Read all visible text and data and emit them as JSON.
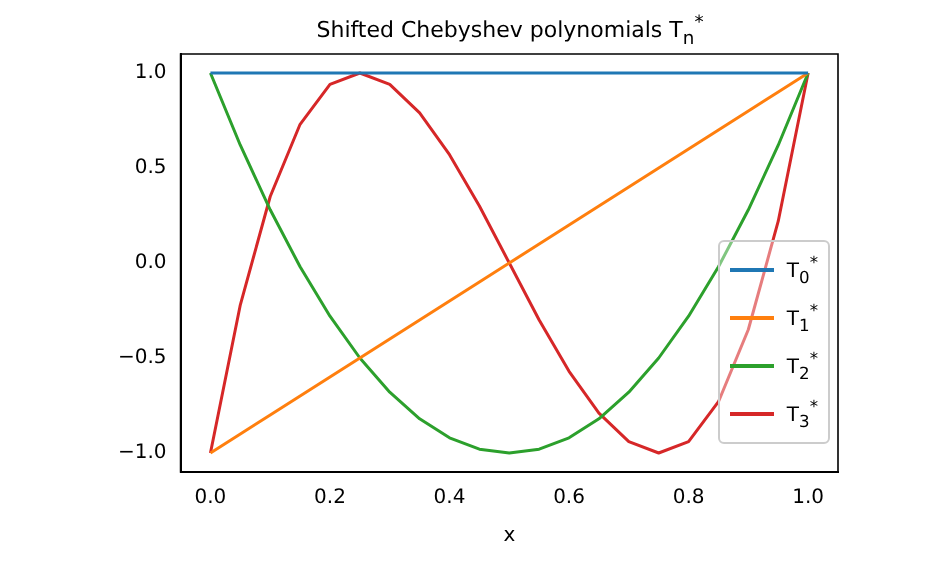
{
  "chart_data": {
    "type": "line",
    "title": "Shifted Chebyshev polynomials T$_{n}$$^{*}$",
    "xlabel": "x",
    "x": [
      0,
      0.05,
      0.1,
      0.15,
      0.2,
      0.25,
      0.3,
      0.35,
      0.4,
      0.45,
      0.5,
      0.55,
      0.6,
      0.65,
      0.7,
      0.75,
      0.8,
      0.85,
      0.9,
      0.95,
      1
    ],
    "series": [
      {
        "name": "T$_{0}$$^{*}$",
        "color": "#1f77b4",
        "values": [
          1,
          1,
          1,
          1,
          1,
          1,
          1,
          1,
          1,
          1,
          1,
          1,
          1,
          1,
          1,
          1,
          1,
          1,
          1,
          1,
          1
        ]
      },
      {
        "name": "T$_{1}$$^{*}$",
        "color": "#ff7f0e",
        "values": [
          -1,
          -0.9,
          -0.8,
          -0.7,
          -0.6,
          -0.5,
          -0.4,
          -0.3,
          -0.2,
          -0.1,
          0,
          0.1,
          0.2,
          0.3,
          0.4,
          0.5,
          0.6,
          0.7,
          0.8,
          0.9,
          1
        ]
      },
      {
        "name": "T$_{2}$$^{*}$",
        "color": "#2ca02c",
        "values": [
          1,
          0.62,
          0.28,
          -0.02,
          -0.28,
          -0.5,
          -0.68,
          -0.82,
          -0.92,
          -0.98,
          -1,
          -0.98,
          -0.92,
          -0.82,
          -0.68,
          -0.5,
          -0.28,
          -0.02,
          0.28,
          0.62,
          1
        ]
      },
      {
        "name": "T$_{3}$$^{*}$",
        "color": "#d62728",
        "values": [
          -1,
          -0.22,
          0.35,
          0.73,
          0.94,
          1,
          0.94,
          0.79,
          0.57,
          0.3,
          0,
          -0.3,
          -0.57,
          -0.79,
          -0.94,
          -1,
          -0.94,
          -0.73,
          -0.35,
          0.22,
          1
        ]
      }
    ],
    "xlim": [
      -0.05,
      1.05
    ],
    "xticks": [
      {
        "value": 0,
        "label": "0.0"
      },
      {
        "value": 0.2,
        "label": "0.2"
      },
      {
        "value": 0.4,
        "label": "0.4"
      },
      {
        "value": 0.6,
        "label": "0.6"
      },
      {
        "value": 0.8,
        "label": "0.8"
      },
      {
        "value": 1,
        "label": "1.0"
      }
    ],
    "ylim": [
      -1.1,
      1.1
    ],
    "yticks": [
      {
        "value": -1,
        "label": "−1.0"
      },
      {
        "value": -0.5,
        "label": "−0.5"
      },
      {
        "value": 0,
        "label": "0.0"
      },
      {
        "value": 0.5,
        "label": "0.5"
      },
      {
        "value": 1,
        "label": "1.0"
      }
    ],
    "grid": false,
    "legend": "right",
    "marker": "none",
    "line_style": "solid"
  }
}
